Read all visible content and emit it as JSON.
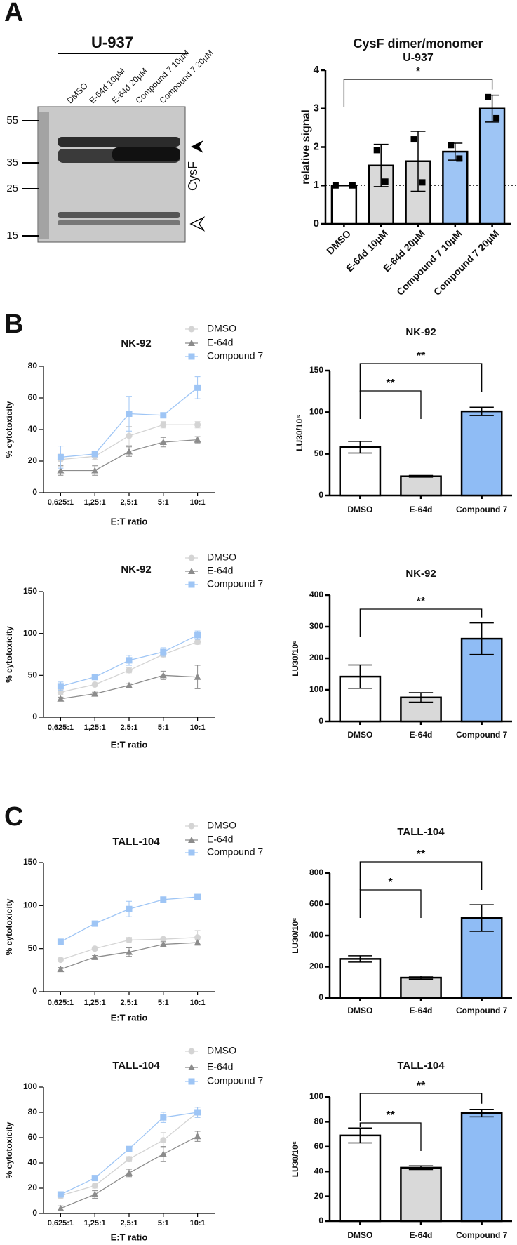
{
  "panels": [
    "A",
    "B",
    "C"
  ],
  "blot": {
    "title": "U-937",
    "lanes": [
      "DMSO",
      "E-64d 10µM",
      "E-64d 20µM",
      "Compound 7 10µM",
      "Compound 7 20µM"
    ],
    "markers": [
      55,
      35,
      25,
      15
    ],
    "label": "CysF"
  },
  "chart_data": [
    {
      "type": "bar",
      "title": "CysF dimer/monomer",
      "subtitle": "U-937",
      "ylabel": "relative signal",
      "categories": [
        "DMSO",
        "E-64d 10µM",
        "E-64d 20µM",
        "Compound 7 10µM",
        "Compound 7 20µM"
      ],
      "values": [
        1.0,
        1.52,
        1.63,
        1.88,
        3.0
      ],
      "errors": [
        0,
        0.55,
        0.78,
        0.22,
        0.35
      ],
      "points": [
        [
          1,
          1
        ],
        [
          1.92,
          1.1
        ],
        [
          2.2,
          1.08
        ],
        [
          2.05,
          1.7
        ],
        [
          3.3,
          2.75
        ]
      ],
      "colors": [
        "#ffffff",
        "#d9d9d9",
        "#d9d9d9",
        "#9ec5f5",
        "#9ec5f5"
      ],
      "ylim": [
        0,
        4
      ],
      "yticks": [
        0,
        1,
        2,
        3,
        4
      ],
      "refline": 1,
      "significance": [
        {
          "from": 0,
          "to": 4,
          "label": "*"
        }
      ]
    },
    {
      "type": "line",
      "title": "NK-92",
      "xlabel": "E:T ratio",
      "ylabel": "% cytotoxicity",
      "categories": [
        "0,625:1",
        "1,25:1",
        "2,5:1",
        "5:1",
        "10:1"
      ],
      "ylim": [
        0,
        80
      ],
      "yticks": [
        0,
        20,
        40,
        60,
        80
      ],
      "series": [
        {
          "name": "DMSO",
          "color": "#d4d4d4",
          "marker": "circle",
          "values": [
            21,
            23,
            36,
            43,
            43
          ],
          "errors": [
            4,
            2,
            6,
            2,
            2
          ]
        },
        {
          "name": "E-64d",
          "color": "#8c8c8c",
          "marker": "triangle",
          "values": [
            14,
            14,
            26,
            32,
            33.5
          ],
          "errors": [
            3,
            3,
            3,
            3,
            2
          ]
        },
        {
          "name": "Compound 7",
          "color": "#9ec5f5",
          "marker": "square",
          "values": [
            22.5,
            24.5,
            50,
            49,
            66.5
          ],
          "errors": [
            7,
            1,
            11,
            1,
            7
          ]
        }
      ]
    },
    {
      "type": "bar",
      "title": "NK-92",
      "ylabel": "LU30/10⁶",
      "categories": [
        "DMSO",
        "E-64d",
        "Compound 7"
      ],
      "values": [
        58,
        23,
        101
      ],
      "errors": [
        7,
        1,
        5
      ],
      "colors": [
        "#ffffff",
        "#d9d9d9",
        "#8fbcf5"
      ],
      "ylim": [
        0,
        150
      ],
      "yticks": [
        0,
        50,
        100,
        150
      ],
      "significance": [
        {
          "from": 0,
          "to": 1,
          "label": "**"
        },
        {
          "from": 0,
          "to": 2,
          "label": "**"
        }
      ]
    },
    {
      "type": "line",
      "title": "NK-92",
      "xlabel": "E:T ratio",
      "ylabel": "% cytotoxicity",
      "categories": [
        "0,625:1",
        "1,25:1",
        "2,5:1",
        "5:1",
        "10:1"
      ],
      "ylim": [
        0,
        150
      ],
      "yticks": [
        0,
        50,
        100,
        150
      ],
      "series": [
        {
          "name": "DMSO",
          "color": "#d4d4d4",
          "marker": "circle",
          "values": [
            30,
            39,
            56,
            75,
            90
          ],
          "errors": [
            3,
            2,
            3,
            3,
            3
          ]
        },
        {
          "name": "E-64d",
          "color": "#8c8c8c",
          "marker": "triangle",
          "values": [
            22,
            28,
            38,
            50,
            48
          ],
          "errors": [
            2,
            2,
            2,
            5,
            14
          ]
        },
        {
          "name": "Compound 7",
          "color": "#9ec5f5",
          "marker": "square",
          "values": [
            37,
            48,
            68,
            78,
            98
          ],
          "errors": [
            5,
            3,
            6,
            5,
            5
          ]
        }
      ]
    },
    {
      "type": "bar",
      "title": "NK-92",
      "ylabel": "LU30/10⁶",
      "categories": [
        "DMSO",
        "E-64d",
        "Compound 7"
      ],
      "values": [
        142,
        76,
        262
      ],
      "errors": [
        37,
        15,
        50
      ],
      "colors": [
        "#ffffff",
        "#d9d9d9",
        "#8fbcf5"
      ],
      "ylim": [
        0,
        400
      ],
      "yticks": [
        0,
        100,
        200,
        300,
        400
      ],
      "significance": [
        {
          "from": 0,
          "to": 2,
          "label": "**"
        }
      ]
    },
    {
      "type": "line",
      "title": "TALL-104",
      "xlabel": "E:T ratio",
      "ylabel": "% cytotoxicity",
      "categories": [
        "0,625:1",
        "1,25:1",
        "2,5:1",
        "5:1",
        "10:1"
      ],
      "ylim": [
        0,
        150
      ],
      "yticks": [
        0,
        50,
        100,
        150
      ],
      "series": [
        {
          "name": "DMSO",
          "color": "#d4d4d4",
          "marker": "circle",
          "values": [
            37,
            50,
            60,
            61,
            63
          ],
          "errors": [
            2,
            2,
            3,
            2,
            8
          ]
        },
        {
          "name": "E-64d",
          "color": "#8c8c8c",
          "marker": "triangle",
          "values": [
            26,
            40,
            46,
            55,
            57
          ],
          "errors": [
            2,
            2,
            5,
            3,
            3
          ]
        },
        {
          "name": "Compound 7",
          "color": "#9ec5f5",
          "marker": "square",
          "values": [
            58,
            79,
            96,
            107,
            110
          ],
          "errors": [
            2,
            2,
            9,
            2,
            2
          ]
        }
      ]
    },
    {
      "type": "bar",
      "title": "TALL-104",
      "ylabel": "LU30/10⁶",
      "categories": [
        "DMSO",
        "E-64d",
        "Compound 7"
      ],
      "values": [
        250,
        130,
        512
      ],
      "errors": [
        20,
        10,
        85
      ],
      "colors": [
        "#ffffff",
        "#d9d9d9",
        "#8fbcf5"
      ],
      "ylim": [
        0,
        800
      ],
      "yticks": [
        0,
        200,
        400,
        600,
        800
      ],
      "significance": [
        {
          "from": 0,
          "to": 1,
          "label": "*"
        },
        {
          "from": 0,
          "to": 2,
          "label": "**"
        }
      ]
    },
    {
      "type": "line",
      "title": "TALL-104",
      "xlabel": "E:T ratio",
      "ylabel": "% cytotoxicity",
      "categories": [
        "0,625:1",
        "1,25:1",
        "2,5:1",
        "5:1",
        "10:1"
      ],
      "ylim": [
        0,
        100
      ],
      "yticks": [
        0,
        20,
        40,
        60,
        80,
        100
      ],
      "series": [
        {
          "name": "DMSO",
          "color": "#d4d4d4",
          "marker": "circle",
          "values": [
            14,
            22,
            43,
            58,
            80
          ],
          "errors": [
            2,
            2,
            2,
            6,
            4
          ]
        },
        {
          "name": "E-64d",
          "color": "#8c8c8c",
          "marker": "triangle",
          "values": [
            4,
            15,
            32,
            47,
            61
          ],
          "errors": [
            2,
            3,
            3,
            6,
            4
          ]
        },
        {
          "name": "Compound 7",
          "color": "#9ec5f5",
          "marker": "square",
          "values": [
            15,
            28,
            51,
            76,
            80
          ],
          "errors": [
            2,
            2,
            2,
            4,
            4
          ]
        }
      ]
    },
    {
      "type": "bar",
      "title": "TALL-104",
      "ylabel": "LU30/10⁶",
      "categories": [
        "DMSO",
        "E-64d",
        "Compound 7"
      ],
      "values": [
        69,
        43,
        87
      ],
      "errors": [
        6,
        1.5,
        3
      ],
      "colors": [
        "#ffffff",
        "#d9d9d9",
        "#8fbcf5"
      ],
      "ylim": [
        0,
        100
      ],
      "yticks": [
        0,
        20,
        40,
        60,
        80,
        100
      ],
      "significance": [
        {
          "from": 0,
          "to": 1,
          "label": "**"
        },
        {
          "from": 0,
          "to": 2,
          "label": "**"
        }
      ]
    }
  ]
}
